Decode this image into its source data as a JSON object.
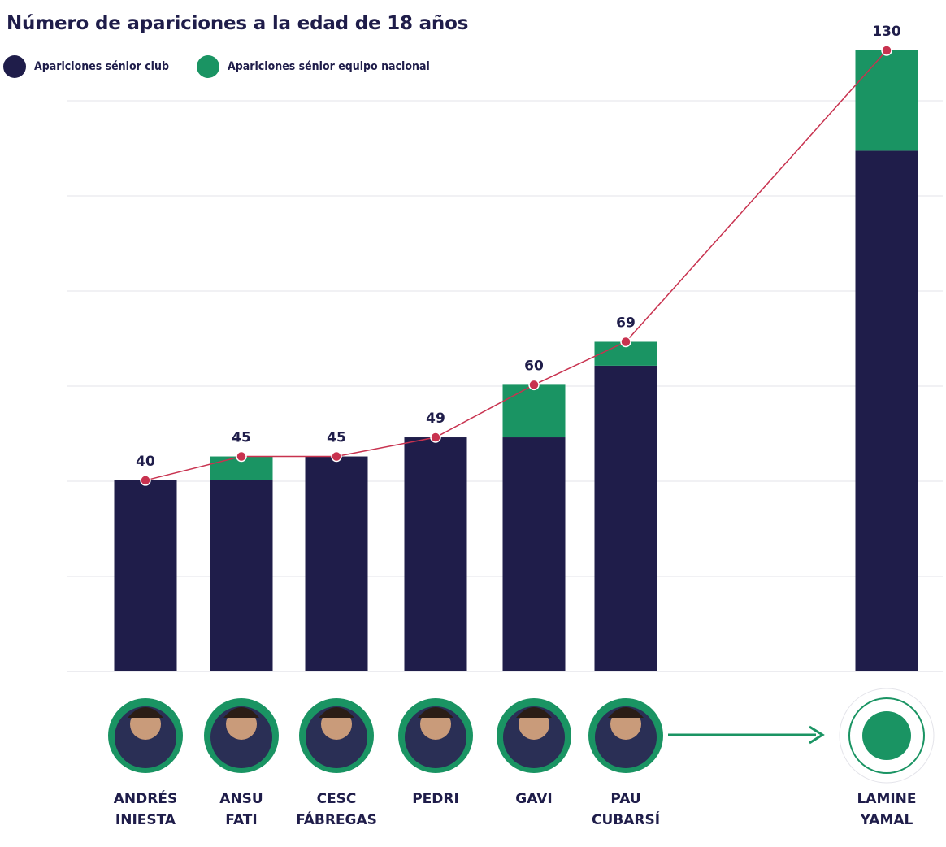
{
  "chart_data": {
    "type": "bar",
    "stacked": true,
    "title": "Número de apariciones a la edad de 18 años",
    "categories": [
      {
        "line1": "ANDRÉS",
        "line2": "INIESTA"
      },
      {
        "line1": "ANSU",
        "line2": "FATI"
      },
      {
        "line1": "CESC",
        "line2": "FÁBREGAS"
      },
      {
        "line1": "PEDRI",
        "line2": ""
      },
      {
        "line1": "GAVI",
        "line2": ""
      },
      {
        "line1": "PAU",
        "line2": "CUBARSÍ"
      },
      {
        "line1": "LAMINE",
        "line2": "YAMAL"
      }
    ],
    "series": [
      {
        "name": "Apariciones sénior club",
        "color": "#1f1d4a",
        "values": [
          40,
          40,
          45,
          49,
          49,
          64,
          109
        ]
      },
      {
        "name": "Apariciones sénior equipo nacional",
        "color": "#1a9463",
        "values": [
          0,
          5,
          0,
          0,
          11,
          5,
          21
        ]
      }
    ],
    "totals": [
      "40",
      "45",
      "45",
      "49",
      "60",
      "69",
      "130"
    ],
    "ylim": [
      0,
      130
    ],
    "grid": true,
    "legend": "top-left",
    "line_color": "#c8324f"
  }
}
